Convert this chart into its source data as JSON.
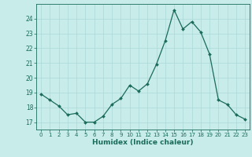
{
  "x": [
    0,
    1,
    2,
    3,
    4,
    5,
    6,
    7,
    8,
    9,
    10,
    11,
    12,
    13,
    14,
    15,
    16,
    17,
    18,
    19,
    20,
    21,
    22,
    23
  ],
  "y": [
    18.9,
    18.5,
    18.1,
    17.5,
    17.6,
    17.0,
    17.0,
    17.4,
    18.2,
    18.6,
    19.5,
    19.1,
    19.6,
    20.9,
    22.5,
    24.6,
    23.3,
    23.8,
    23.1,
    21.6,
    18.5,
    18.2,
    17.5,
    17.2
  ],
  "line_color": "#1a6b5a",
  "marker": "D",
  "marker_size": 2.0,
  "xlabel": "Humidex (Indice chaleur)",
  "xlim": [
    -0.5,
    23.5
  ],
  "ylim": [
    16.5,
    25.0
  ],
  "yticks": [
    17,
    18,
    19,
    20,
    21,
    22,
    23,
    24
  ],
  "xticks": [
    0,
    1,
    2,
    3,
    4,
    5,
    6,
    7,
    8,
    9,
    10,
    11,
    12,
    13,
    14,
    15,
    16,
    17,
    18,
    19,
    20,
    21,
    22,
    23
  ],
  "bg_color": "#c8ecea",
  "grid_color": "#aad8d8",
  "font_color": "#1a6b5a"
}
